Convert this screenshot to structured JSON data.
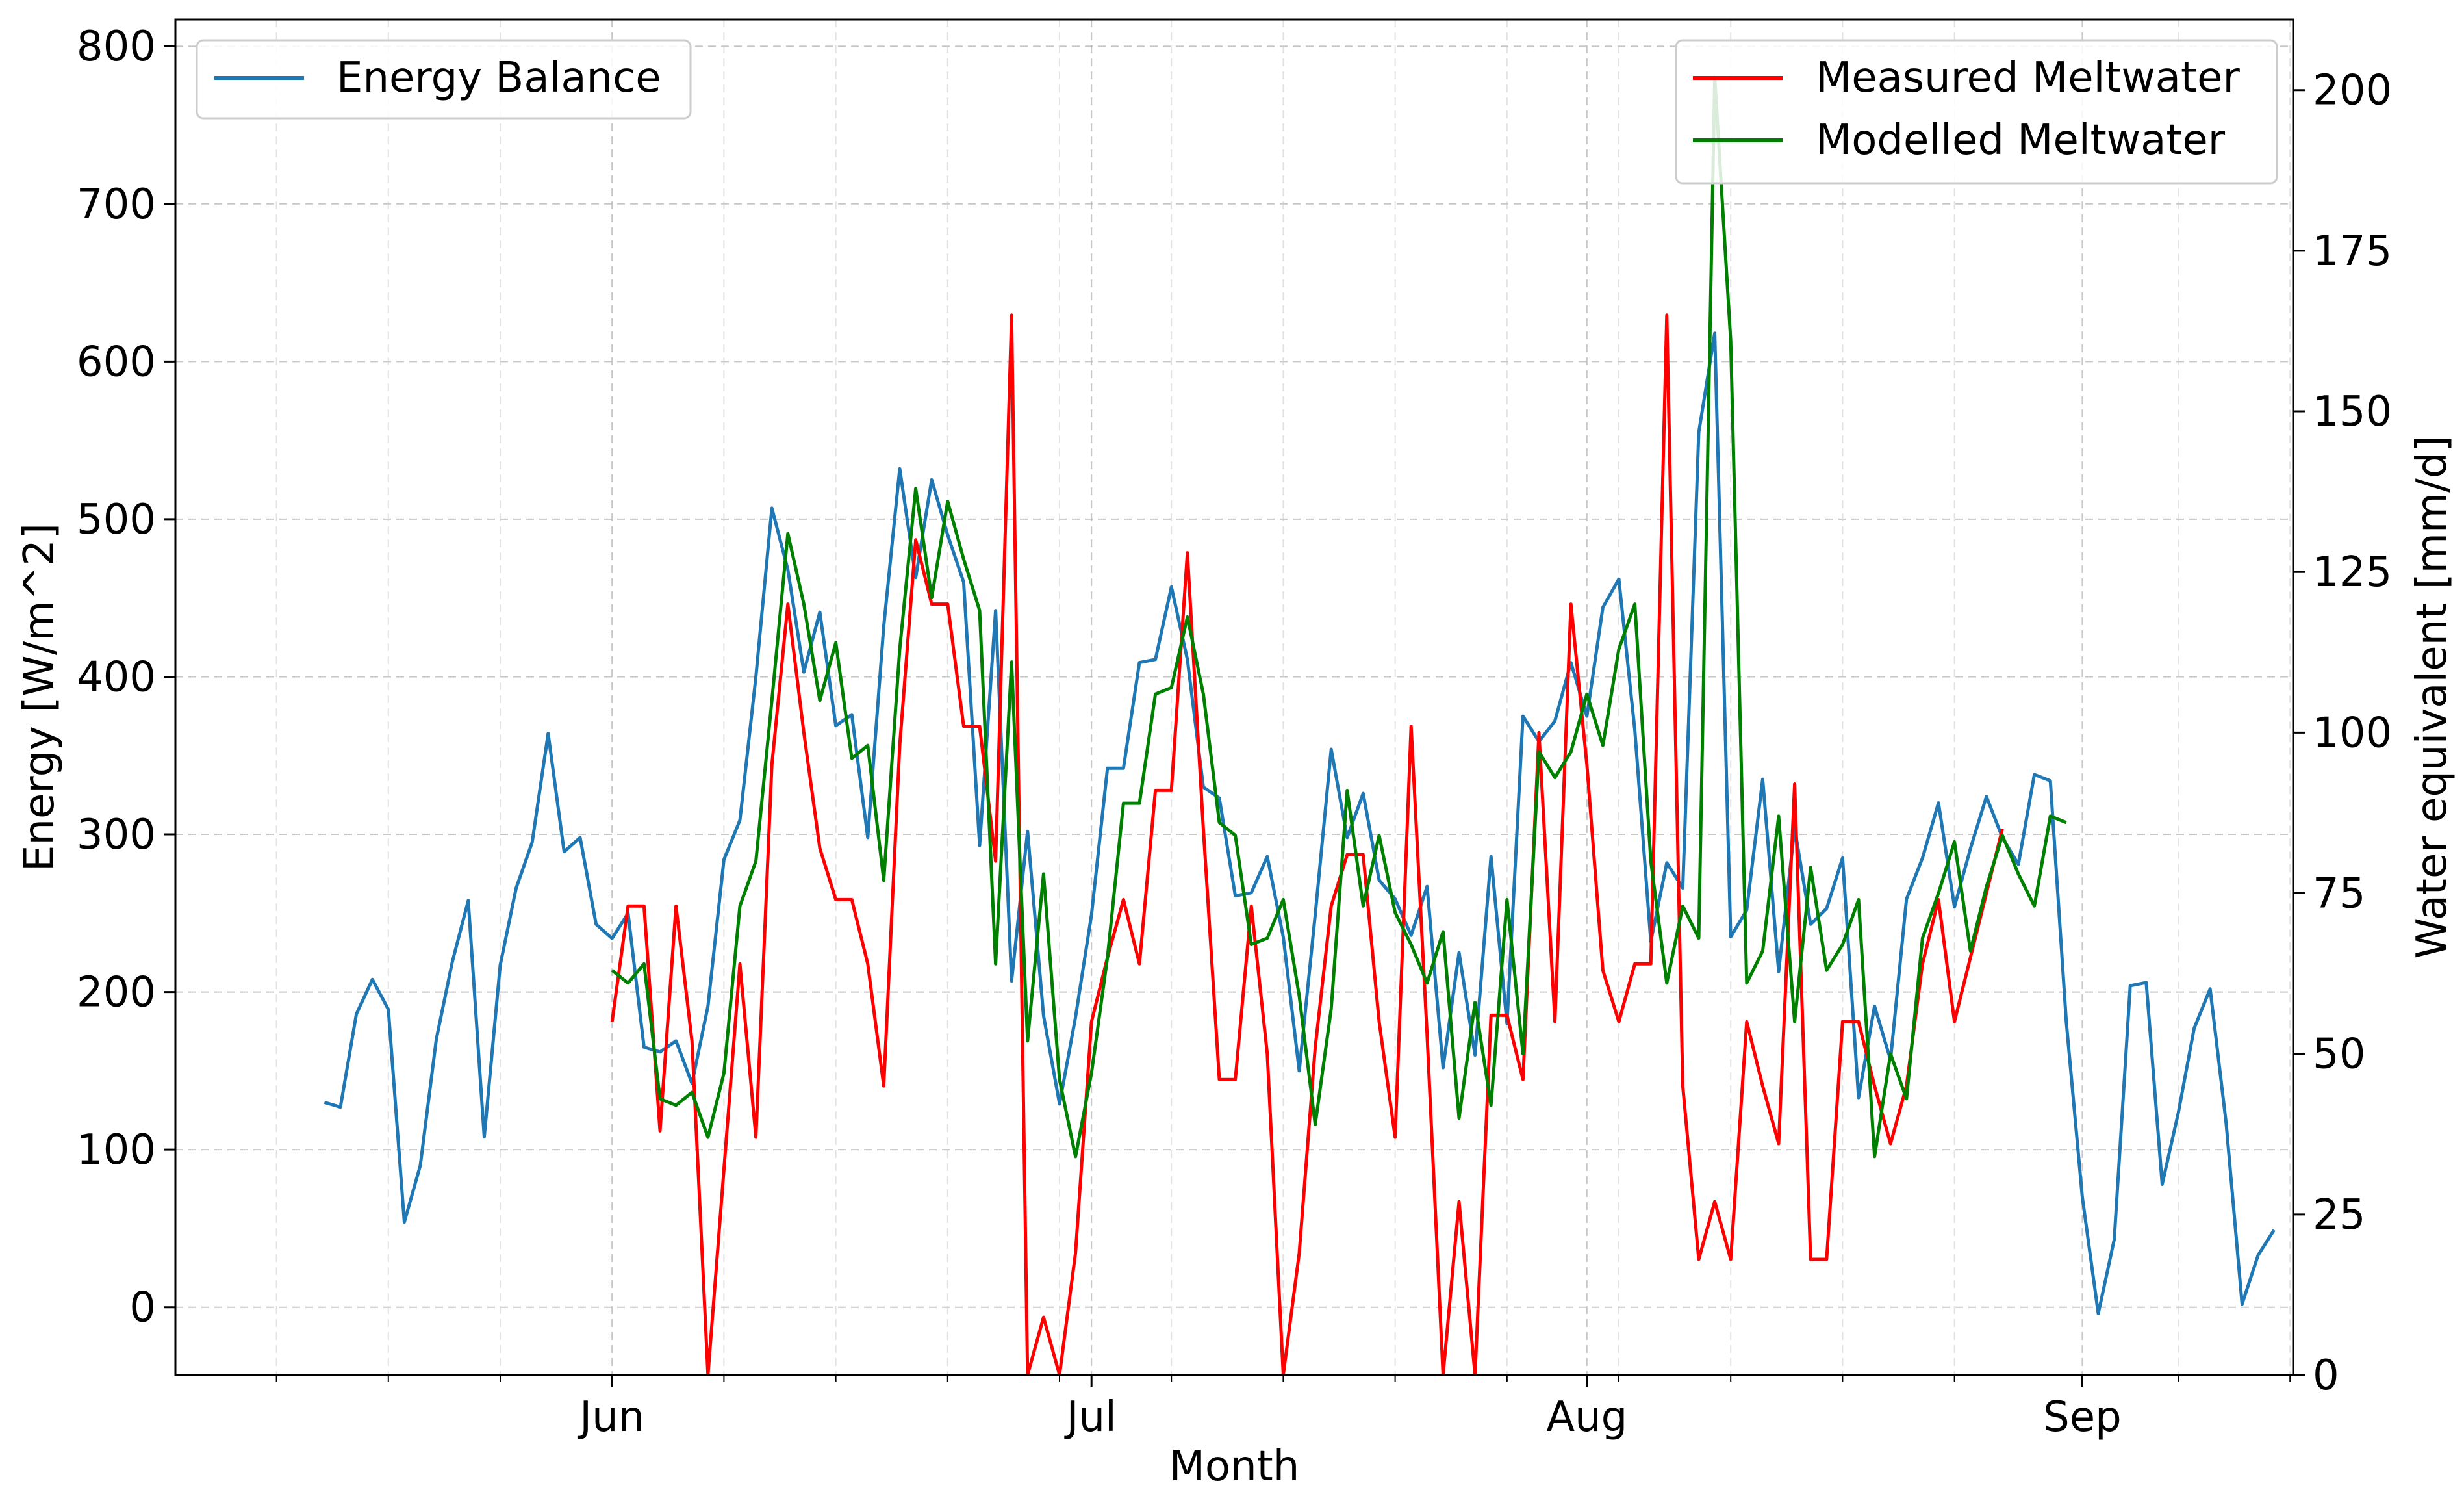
{
  "chart_data": {
    "type": "line",
    "x_start_date": "2017-05-10",
    "xlabel": "Month",
    "ylabel_left": "Energy [W/m^2]",
    "ylabel_right": "Water equivalent [mm/d]",
    "x_ticks": [
      "Jun",
      "Jul",
      "Aug",
      "Sep"
    ],
    "y_ticks_left": [
      "0",
      "100",
      "200",
      "300",
      "400",
      "500",
      "600",
      "700",
      "800"
    ],
    "y_ticks_right": [
      "0",
      "25",
      "50",
      "75",
      "100",
      "125",
      "150",
      "175",
      "200"
    ],
    "ylim_left": [
      -43,
      817
    ],
    "ylim_right": [
      0,
      211
    ],
    "grid": true,
    "legend_left": {
      "position": "upper-left",
      "entries": [
        "Energy Balance"
      ]
    },
    "legend_right": {
      "position": "upper-right",
      "entries": [
        "Measured Meltwater",
        "Modelled Meltwater"
      ]
    },
    "colors": {
      "energy": "#1f77b4",
      "measured": "#ff0000",
      "modelled": "#008000"
    },
    "series": [
      {
        "name": "Energy Balance",
        "axis": "left",
        "start": "2017-05-14",
        "values": [
          130,
          127,
          186,
          208,
          189,
          54,
          90,
          170,
          219,
          258,
          108,
          217,
          266,
          295,
          364,
          289,
          298,
          243,
          234,
          250,
          165,
          162,
          169,
          142,
          191,
          284,
          309,
          400,
          507,
          468,
          403,
          441,
          369,
          376,
          298,
          432,
          532,
          463,
          525,
          490,
          460,
          293,
          442,
          207,
          302,
          185,
          129,
          184,
          249,
          342,
          342,
          409,
          411,
          457,
          411,
          330,
          323,
          261,
          263,
          286,
          235,
          150,
          249,
          354,
          298,
          326,
          271,
          259,
          236,
          267,
          152,
          225,
          160,
          286,
          180,
          375,
          359,
          372,
          409,
          375,
          444,
          462,
          366,
          232,
          282,
          266,
          555,
          618,
          235,
          252,
          335,
          213,
          304,
          243,
          253,
          285,
          133,
          191,
          157,
          259,
          285,
          320,
          254,
          291,
          324,
          298,
          281,
          338,
          334,
          181,
          70,
          -4,
          43,
          204,
          206,
          78,
          123,
          177,
          202,
          117,
          2,
          33,
          49
        ]
      },
      {
        "name": "Measured Meltwater",
        "axis": "right",
        "start": "2017-06-01",
        "values": [
          55,
          73,
          73,
          38,
          73,
          52,
          0,
          32,
          64,
          37,
          95,
          120,
          100,
          82,
          74,
          74,
          64,
          45,
          98,
          130,
          120,
          120,
          101,
          101,
          80,
          165,
          0,
          9,
          0,
          19,
          55,
          65,
          74,
          64,
          91,
          91,
          128,
          85,
          46,
          46,
          73,
          50,
          0,
          19,
          51,
          73,
          81,
          81,
          55,
          37,
          101,
          53,
          0,
          27,
          0,
          56,
          56,
          46,
          100,
          55,
          120,
          95,
          63,
          55,
          64,
          64,
          165,
          45,
          18,
          27,
          18,
          55,
          45,
          36,
          92,
          18,
          18,
          55,
          55,
          45,
          36,
          45,
          64,
          74,
          55,
          65,
          75,
          85
        ]
      },
      {
        "name": "Modelled Meltwater",
        "axis": "right",
        "start": "2017-06-01",
        "values": [
          63,
          61,
          64,
          43,
          42,
          44,
          37,
          47,
          73,
          80,
          105,
          131,
          120,
          105,
          114,
          96,
          98,
          77,
          113,
          138,
          121,
          136,
          127,
          119,
          64,
          111,
          52,
          78,
          46,
          34,
          47,
          65,
          89,
          89,
          106,
          107,
          118,
          106,
          86,
          84,
          67,
          68,
          74,
          59,
          39,
          57,
          91,
          73,
          84,
          72,
          67,
          61,
          69,
          40,
          58,
          42,
          74,
          50,
          97,
          93,
          97,
          106,
          98,
          113,
          120,
          80,
          61,
          73,
          68,
          202,
          161,
          61,
          66,
          87,
          55,
          79,
          63,
          67,
          74,
          34,
          50,
          43,
          68,
          75,
          83,
          66,
          76,
          84,
          78,
          73,
          87,
          86
        ]
      }
    ]
  }
}
